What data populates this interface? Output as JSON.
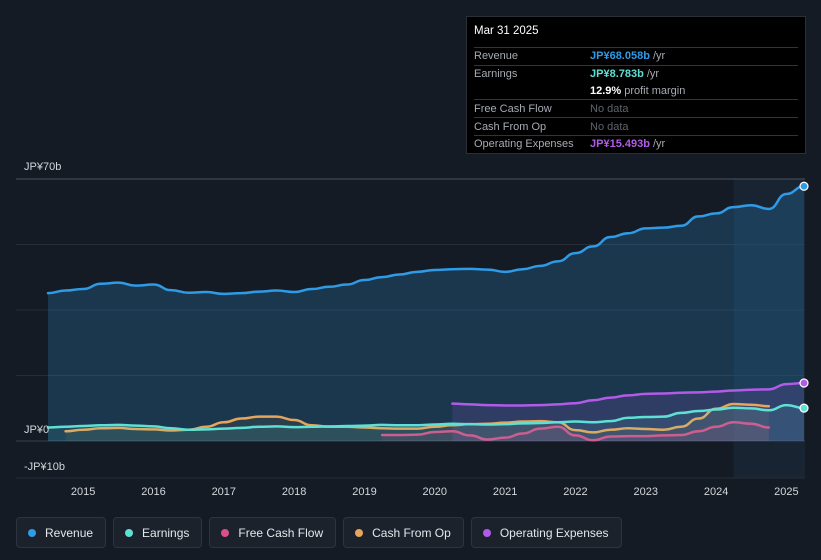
{
  "tooltip": {
    "date": "Mar 31 2025",
    "rows": [
      {
        "label": "Revenue",
        "value": "JP¥68.058b",
        "unit": "/yr",
        "color": "#2f9ae5"
      },
      {
        "label": "Earnings",
        "value": "JP¥8.783b",
        "unit": "/yr",
        "color": "#5ee0d4"
      },
      {
        "label": "",
        "value": "12.9%",
        "unit": "profit margin",
        "color": "#ffffff"
      },
      {
        "label": "Free Cash Flow",
        "value": "No data",
        "unit": "",
        "color": "#5f646c"
      },
      {
        "label": "Cash From Op",
        "value": "No data",
        "unit": "",
        "color": "#5f646c"
      },
      {
        "label": "Operating Expenses",
        "value": "JP¥15.493b",
        "unit": "/yr",
        "color": "#b15be8"
      }
    ]
  },
  "legend": [
    {
      "label": "Revenue",
      "color": "#2f9ae5"
    },
    {
      "label": "Earnings",
      "color": "#5ee0d4"
    },
    {
      "label": "Free Cash Flow",
      "color": "#d9508a"
    },
    {
      "label": "Cash From Op",
      "color": "#e6a55a"
    },
    {
      "label": "Operating Expenses",
      "color": "#b15be8"
    }
  ],
  "chart_data": {
    "type": "line",
    "title": "",
    "y_unit_labels": {
      "top": "JP¥70b",
      "zero": "JP¥0",
      "bottom": "-JP¥10b"
    },
    "ylim": [
      -10,
      70
    ],
    "xlim": [
      2014.5,
      2025.25
    ],
    "x_ticks": [
      "2015",
      "2016",
      "2017",
      "2018",
      "2019",
      "2020",
      "2021",
      "2022",
      "2023",
      "2024",
      "2025"
    ],
    "x_tick_values": [
      2015,
      2016,
      2017,
      2018,
      2019,
      2020,
      2021,
      2022,
      2023,
      2024,
      2025
    ],
    "highlight_from": 2024.25,
    "series": [
      {
        "name": "Revenue",
        "color": "#2f9ae5",
        "fill": true,
        "points": [
          [
            2014.5,
            39.5
          ],
          [
            2014.75,
            40.2
          ],
          [
            2015.0,
            40.6
          ],
          [
            2015.25,
            42.0
          ],
          [
            2015.5,
            42.3
          ],
          [
            2015.75,
            41.5
          ],
          [
            2016.0,
            41.8
          ],
          [
            2016.25,
            40.3
          ],
          [
            2016.5,
            39.6
          ],
          [
            2016.75,
            39.8
          ],
          [
            2017.0,
            39.3
          ],
          [
            2017.25,
            39.5
          ],
          [
            2017.5,
            39.9
          ],
          [
            2017.75,
            40.2
          ],
          [
            2018.0,
            39.8
          ],
          [
            2018.25,
            40.6
          ],
          [
            2018.5,
            41.2
          ],
          [
            2018.75,
            41.8
          ],
          [
            2019.0,
            43.0
          ],
          [
            2019.25,
            43.8
          ],
          [
            2019.5,
            44.5
          ],
          [
            2019.75,
            45.2
          ],
          [
            2020.0,
            45.7
          ],
          [
            2020.25,
            45.9
          ],
          [
            2020.5,
            46.0
          ],
          [
            2020.75,
            45.8
          ],
          [
            2021.0,
            45.2
          ],
          [
            2021.25,
            45.9
          ],
          [
            2021.5,
            46.8
          ],
          [
            2021.75,
            48.0
          ],
          [
            2022.0,
            50.2
          ],
          [
            2022.25,
            52.0
          ],
          [
            2022.5,
            54.5
          ],
          [
            2022.75,
            55.5
          ],
          [
            2023.0,
            56.8
          ],
          [
            2023.25,
            57.0
          ],
          [
            2023.5,
            57.5
          ],
          [
            2023.75,
            60.0
          ],
          [
            2024.0,
            60.8
          ],
          [
            2024.25,
            62.5
          ],
          [
            2024.5,
            63.0
          ],
          [
            2024.75,
            62.0
          ],
          [
            2025.0,
            66.0
          ],
          [
            2025.25,
            68.058
          ]
        ]
      },
      {
        "name": "Earnings",
        "color": "#5ee0d4",
        "fill": true,
        "points": [
          [
            2014.5,
            3.6
          ],
          [
            2014.75,
            3.8
          ],
          [
            2015.0,
            4.0
          ],
          [
            2015.25,
            4.2
          ],
          [
            2015.5,
            4.3
          ],
          [
            2015.75,
            4.1
          ],
          [
            2016.0,
            3.9
          ],
          [
            2016.25,
            3.4
          ],
          [
            2016.5,
            3.0
          ],
          [
            2016.75,
            3.1
          ],
          [
            2017.0,
            3.3
          ],
          [
            2017.25,
            3.5
          ],
          [
            2017.5,
            3.8
          ],
          [
            2017.75,
            3.9
          ],
          [
            2018.0,
            3.7
          ],
          [
            2018.25,
            3.8
          ],
          [
            2018.5,
            3.9
          ],
          [
            2018.75,
            4.0
          ],
          [
            2019.0,
            4.1
          ],
          [
            2019.25,
            4.3
          ],
          [
            2019.5,
            4.2
          ],
          [
            2019.75,
            4.2
          ],
          [
            2020.0,
            4.4
          ],
          [
            2020.25,
            4.6
          ],
          [
            2020.5,
            4.5
          ],
          [
            2020.75,
            4.4
          ],
          [
            2021.0,
            4.5
          ],
          [
            2021.25,
            4.7
          ],
          [
            2021.5,
            4.8
          ],
          [
            2021.75,
            5.0
          ],
          [
            2022.0,
            5.2
          ],
          [
            2022.25,
            5.0
          ],
          [
            2022.5,
            5.3
          ],
          [
            2022.75,
            6.2
          ],
          [
            2023.0,
            6.4
          ],
          [
            2023.25,
            6.5
          ],
          [
            2023.5,
            7.5
          ],
          [
            2023.75,
            8.0
          ],
          [
            2024.0,
            8.4
          ],
          [
            2024.25,
            8.9
          ],
          [
            2024.5,
            8.7
          ],
          [
            2024.75,
            8.2
          ],
          [
            2025.0,
            9.6
          ],
          [
            2025.25,
            8.783
          ]
        ]
      },
      {
        "name": "Free Cash Flow",
        "color": "#d9508a",
        "fill": true,
        "points": [
          [
            2019.25,
            1.6
          ],
          [
            2019.5,
            1.6
          ],
          [
            2019.75,
            1.7
          ],
          [
            2020.0,
            2.4
          ],
          [
            2020.25,
            2.6
          ],
          [
            2020.5,
            1.5
          ],
          [
            2020.75,
            0.4
          ],
          [
            2021.0,
            0.9
          ],
          [
            2021.25,
            2.0
          ],
          [
            2021.5,
            3.3
          ],
          [
            2021.75,
            3.8
          ],
          [
            2022.0,
            1.5
          ],
          [
            2022.25,
            0.2
          ],
          [
            2022.5,
            1.2
          ],
          [
            2022.75,
            1.3
          ],
          [
            2023.0,
            1.3
          ],
          [
            2023.25,
            1.5
          ],
          [
            2023.5,
            1.6
          ],
          [
            2023.75,
            2.6
          ],
          [
            2024.0,
            3.8
          ],
          [
            2024.25,
            5.0
          ],
          [
            2024.5,
            4.6
          ],
          [
            2024.75,
            3.6
          ]
        ]
      },
      {
        "name": "Cash From Op",
        "color": "#e6a55a",
        "fill": true,
        "points": [
          [
            2014.75,
            2.6
          ],
          [
            2015.0,
            3.0
          ],
          [
            2015.25,
            3.4
          ],
          [
            2015.5,
            3.5
          ],
          [
            2015.75,
            3.2
          ],
          [
            2016.0,
            3.1
          ],
          [
            2016.25,
            2.8
          ],
          [
            2016.5,
            3.0
          ],
          [
            2016.75,
            3.8
          ],
          [
            2017.0,
            5.0
          ],
          [
            2017.25,
            6.0
          ],
          [
            2017.5,
            6.5
          ],
          [
            2017.75,
            6.5
          ],
          [
            2018.0,
            5.6
          ],
          [
            2018.25,
            4.2
          ],
          [
            2018.5,
            3.8
          ],
          [
            2018.75,
            3.8
          ],
          [
            2019.0,
            3.6
          ],
          [
            2019.25,
            3.4
          ],
          [
            2019.5,
            3.3
          ],
          [
            2019.75,
            3.3
          ],
          [
            2020.0,
            3.8
          ],
          [
            2020.25,
            4.2
          ],
          [
            2020.5,
            4.5
          ],
          [
            2020.75,
            4.6
          ],
          [
            2021.0,
            4.9
          ],
          [
            2021.25,
            5.2
          ],
          [
            2021.5,
            5.3
          ],
          [
            2021.75,
            5.0
          ],
          [
            2022.0,
            2.9
          ],
          [
            2022.25,
            2.3
          ],
          [
            2022.5,
            3.0
          ],
          [
            2022.75,
            3.4
          ],
          [
            2023.0,
            3.2
          ],
          [
            2023.25,
            3.0
          ],
          [
            2023.5,
            3.8
          ],
          [
            2023.75,
            6.0
          ],
          [
            2024.0,
            8.6
          ],
          [
            2024.25,
            9.9
          ],
          [
            2024.5,
            9.7
          ],
          [
            2024.75,
            9.3
          ]
        ]
      },
      {
        "name": "Operating Expenses",
        "color": "#b15be8",
        "fill": true,
        "points": [
          [
            2020.25,
            10.0
          ],
          [
            2020.5,
            9.8
          ],
          [
            2020.75,
            9.6
          ],
          [
            2021.0,
            9.5
          ],
          [
            2021.25,
            9.5
          ],
          [
            2021.5,
            9.6
          ],
          [
            2021.75,
            9.8
          ],
          [
            2022.0,
            10.1
          ],
          [
            2022.25,
            10.9
          ],
          [
            2022.5,
            11.6
          ],
          [
            2022.75,
            12.2
          ],
          [
            2023.0,
            12.6
          ],
          [
            2023.25,
            12.7
          ],
          [
            2023.5,
            12.9
          ],
          [
            2023.75,
            13.0
          ],
          [
            2024.0,
            13.2
          ],
          [
            2024.25,
            13.5
          ],
          [
            2024.5,
            13.7
          ],
          [
            2024.75,
            13.8
          ],
          [
            2025.0,
            15.2
          ],
          [
            2025.25,
            15.493
          ]
        ]
      }
    ]
  }
}
